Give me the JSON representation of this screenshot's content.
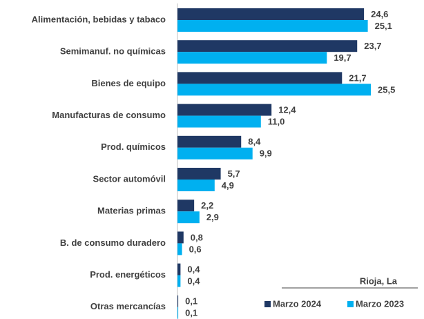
{
  "chart_data": {
    "type": "bar",
    "orientation": "horizontal",
    "annotation": "Rioja, La",
    "categories": [
      "Alimentación, bebidas y tabaco",
      "Semimanuf. no químicas",
      "Bienes de equipo",
      "Manufacturas de consumo",
      "Prod. químicos",
      "Sector automóvil",
      "Materias primas",
      "B. de consumo duradero",
      "Prod. energéticos",
      "Otras mercancías"
    ],
    "series": [
      {
        "name": "Marzo 2024",
        "color": "#1f3864",
        "values": [
          24.6,
          23.7,
          21.7,
          12.4,
          8.4,
          5.7,
          2.2,
          0.8,
          0.4,
          0.1
        ],
        "value_labels": [
          "24,6",
          "23,7",
          "21,7",
          "12,4",
          "8,4",
          "5,7",
          "2,2",
          "0,8",
          "0,4",
          "0,1"
        ]
      },
      {
        "name": "Marzo 2023",
        "color": "#00b0f0",
        "values": [
          25.1,
          19.7,
          25.5,
          11.0,
          9.9,
          4.9,
          2.9,
          0.6,
          0.4,
          0.1
        ],
        "value_labels": [
          "25,1",
          "19,7",
          "25,5",
          "11,0",
          "9,9",
          "4,9",
          "2,9",
          "0,6",
          "0,4",
          "0,1"
        ]
      }
    ],
    "legend": "bottom-right"
  }
}
